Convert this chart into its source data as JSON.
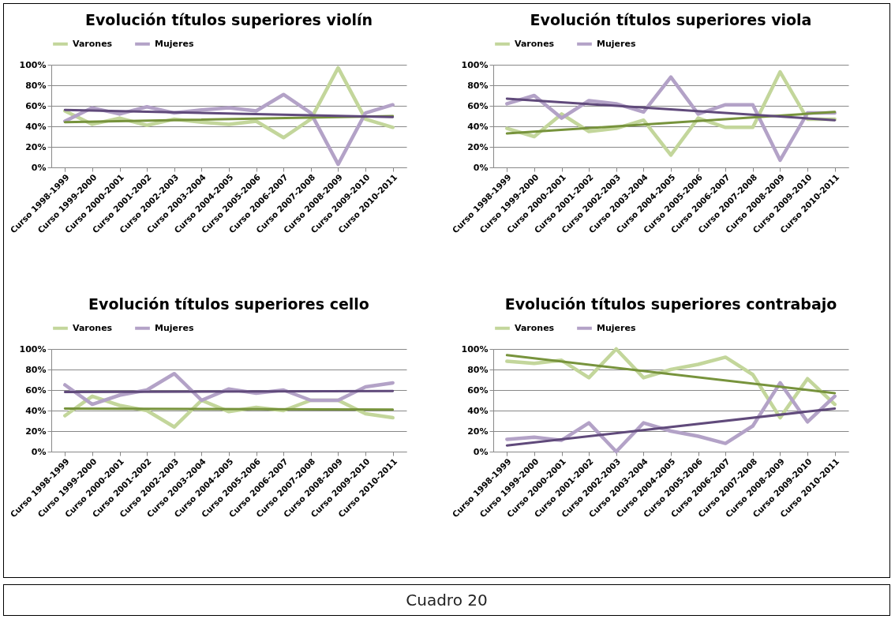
{
  "chart_data": [
    {
      "type": "line",
      "title": "Evolución títulos superiores violín",
      "legend": "top",
      "grid": "y",
      "categories": [
        "Curso 1998-1999",
        "Curso 1999-2000",
        "Curso 2000-2001",
        "Curso 2001-2002",
        "Curso 2002-2003",
        "Curso 2003-2004",
        "Curso 2004-2005",
        "Curso 2005-2006",
        "Curso 2006-2007",
        "Curso 2007-2008",
        "Curso 2008-2009",
        "Curso 2009-2010",
        "Curso 2010-2011"
      ],
      "ylim": [
        0,
        100
      ],
      "yticks": [
        {
          "value": 0,
          "label": "0%"
        },
        {
          "value": 20,
          "label": "20%"
        },
        {
          "value": 40,
          "label": "40%"
        },
        {
          "value": 60,
          "label": "60%"
        },
        {
          "value": 80,
          "label": "80%"
        },
        {
          "value": 100,
          "label": "100%"
        }
      ],
      "series": [
        {
          "name": "Varones",
          "color": "#c3d69b",
          "values": [
            55,
            42,
            48,
            41,
            47,
            44,
            42,
            45,
            29,
            47,
            97,
            47,
            39
          ]
        },
        {
          "name": "Mujeres",
          "color": "#b3a2c7",
          "values": [
            45,
            58,
            52,
            59,
            53,
            56,
            58,
            55,
            71,
            53,
            3,
            53,
            61
          ]
        },
        {
          "type": "line",
          "color": "#77933c",
          "x": [
            "Curso 1998-1999",
            "Curso 2010-2011"
          ],
          "values": [
            44,
            50
          ]
        },
        {
          "type": "line",
          "color": "#604a7b",
          "x": [
            "Curso 1998-1999",
            "Curso 2010-2011"
          ],
          "values": [
            56,
            49
          ]
        }
      ]
    },
    {
      "type": "line",
      "title": "Evolución títulos superiores viola",
      "legend": "top",
      "grid": "y",
      "categories": [
        "Curso 1998-1999",
        "Curso 1999-2000",
        "Curso 2000-2001",
        "Curso 2001-2002",
        "Curso 2002-2003",
        "Curso 2003-2004",
        "Curso 2004-2005",
        "Curso 2005-2006",
        "Curso 2006-2007",
        "Curso 2007-2008",
        "Curso 2008-2009",
        "Curso 2009-2010",
        "Curso 2010-2011"
      ],
      "ylim": [
        0,
        100
      ],
      "yticks": [
        {
          "value": 0,
          "label": "0%"
        },
        {
          "value": 20,
          "label": "20%"
        },
        {
          "value": 40,
          "label": "40%"
        },
        {
          "value": 60,
          "label": "60%"
        },
        {
          "value": 80,
          "label": "80%"
        },
        {
          "value": 100,
          "label": "100%"
        }
      ],
      "series": [
        {
          "name": "Varones",
          "color": "#c3d69b",
          "values": [
            38,
            30,
            52,
            35,
            38,
            46,
            12,
            48,
            39,
            39,
            93,
            47,
            47
          ]
        },
        {
          "name": "Mujeres",
          "color": "#b3a2c7",
          "values": [
            62,
            70,
            48,
            65,
            62,
            54,
            88,
            52,
            61,
            61,
            7,
            53,
            53
          ]
        },
        {
          "type": "line",
          "color": "#77933c",
          "x": [
            "Curso 1998-1999",
            "Curso 2010-2011"
          ],
          "values": [
            33,
            54
          ]
        },
        {
          "type": "line",
          "color": "#604a7b",
          "x": [
            "Curso 1998-1999",
            "Curso 2010-2011"
          ],
          "values": [
            67,
            46
          ]
        }
      ]
    },
    {
      "type": "line",
      "title": "Evolución títulos superiores cello",
      "legend": "top",
      "grid": "y",
      "categories": [
        "Curso 1998-1999",
        "Curso 1999-2000",
        "Curso 2000-2001",
        "Curso 2001-2002",
        "Curso 2002-2003",
        "Curso 2003-2004",
        "Curso 2004-2005",
        "Curso 2005-2006",
        "Curso 2006-2007",
        "Curso 2007-2008",
        "Curso 2008-2009",
        "Curso 2009-2010",
        "Curso 2010-2011"
      ],
      "ylim": [
        0,
        100
      ],
      "yticks": [
        {
          "value": 0,
          "label": "0%"
        },
        {
          "value": 20,
          "label": "20%"
        },
        {
          "value": 40,
          "label": "40%"
        },
        {
          "value": 60,
          "label": "60%"
        },
        {
          "value": 80,
          "label": "80%"
        },
        {
          "value": 100,
          "label": "100%"
        }
      ],
      "series": [
        {
          "name": "Varones",
          "color": "#c3d69b",
          "values": [
            35,
            54,
            45,
            40,
            24,
            50,
            39,
            43,
            40,
            50,
            50,
            37,
            33
          ]
        },
        {
          "name": "Mujeres",
          "color": "#b3a2c7",
          "values": [
            65,
            46,
            55,
            60,
            76,
            50,
            61,
            57,
            60,
            50,
            50,
            63,
            67
          ]
        },
        {
          "type": "line",
          "color": "#77933c",
          "x": [
            "Curso 1998-1999",
            "Curso 2010-2011"
          ],
          "values": [
            42,
            41
          ]
        },
        {
          "type": "line",
          "color": "#604a7b",
          "x": [
            "Curso 1998-1999",
            "Curso 2010-2011"
          ],
          "values": [
            58,
            59
          ]
        }
      ]
    },
    {
      "type": "line",
      "title": "Evolución títulos superiores contrabajo",
      "legend": "top",
      "grid": "y",
      "categories": [
        "Curso 1998-1999",
        "Curso 1999-2000",
        "Curso 2000-2001",
        "Curso 2001-2002",
        "Curso 2002-2003",
        "Curso 2003-2004",
        "Curso 2004-2005",
        "Curso 2005-2006",
        "Curso 2006-2007",
        "Curso 2007-2008",
        "Curso 2008-2009",
        "Curso 2009-2010",
        "Curso 2010-2011"
      ],
      "ylim": [
        0,
        100
      ],
      "yticks": [
        {
          "value": 0,
          "label": "0%"
        },
        {
          "value": 20,
          "label": "20%"
        },
        {
          "value": 40,
          "label": "40%"
        },
        {
          "value": 60,
          "label": "60%"
        },
        {
          "value": 80,
          "label": "80%"
        },
        {
          "value": 100,
          "label": "100%"
        }
      ],
      "series": [
        {
          "name": "Varones",
          "color": "#c3d69b",
          "values": [
            88,
            86,
            89,
            72,
            100,
            72,
            80,
            85,
            92,
            75,
            33,
            71,
            46
          ]
        },
        {
          "name": "Mujeres",
          "color": "#b3a2c7",
          "values": [
            12,
            14,
            11,
            28,
            0,
            28,
            20,
            15,
            8,
            25,
            67,
            29,
            54
          ]
        },
        {
          "type": "line",
          "color": "#77933c",
          "x": [
            "Curso 1998-1999",
            "Curso 2010-2011"
          ],
          "values": [
            94,
            57
          ]
        },
        {
          "type": "line",
          "color": "#604a7b",
          "x": [
            "Curso 1998-1999",
            "Curso 2010-2011"
          ],
          "values": [
            6,
            42
          ]
        }
      ]
    },
    {
      "type": "other",
      "title": "Cuadro 20"
    }
  ]
}
